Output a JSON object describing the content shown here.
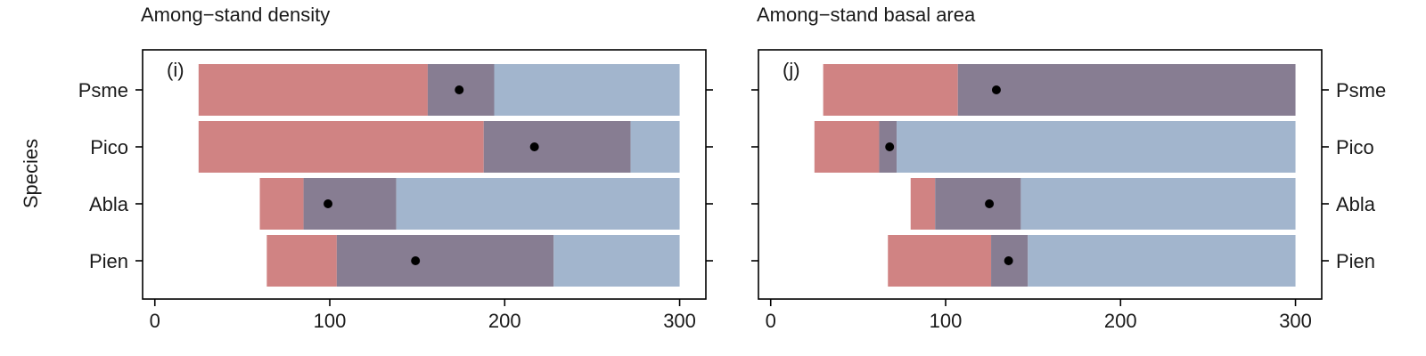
{
  "colors": {
    "red": "#d08383",
    "purple": "#877d92",
    "blue": "#a2b5cd",
    "point": "#000000",
    "axis": "#000000"
  },
  "chart_data": [
    {
      "type": "bar",
      "subtype": "stacked-horizontal-range",
      "title": "Among−stand density",
      "panel_label": "(i)",
      "ylabel": "Species",
      "xlabel": "",
      "xlim": [
        -7,
        315
      ],
      "xticks": [
        0,
        100,
        200,
        300
      ],
      "categories": [
        "Psme",
        "Pico",
        "Abla",
        "Pien"
      ],
      "ytick_side": "left",
      "segments": [
        {
          "red": [
            25,
            156
          ],
          "purple": [
            156,
            194
          ],
          "blue": [
            194,
            300
          ],
          "point": 174
        },
        {
          "red": [
            25,
            188
          ],
          "purple": [
            188,
            272
          ],
          "blue": [
            272,
            300
          ],
          "point": 217
        },
        {
          "red": [
            60,
            85
          ],
          "purple": [
            85,
            138
          ],
          "blue": [
            138,
            300
          ],
          "point": 99
        },
        {
          "red": [
            64,
            104
          ],
          "purple": [
            104,
            228
          ],
          "blue": [
            228,
            300
          ],
          "point": 149
        }
      ]
    },
    {
      "type": "bar",
      "subtype": "stacked-horizontal-range",
      "title": "Among−stand basal area",
      "panel_label": "(j)",
      "ylabel": "",
      "xlabel": "",
      "xlim": [
        -7,
        315
      ],
      "xticks": [
        0,
        100,
        200,
        300
      ],
      "categories": [
        "Psme",
        "Pico",
        "Abla",
        "Pien"
      ],
      "ytick_side": "right",
      "segments": [
        {
          "red": [
            30,
            107
          ],
          "purple": [
            107,
            300
          ],
          "blue": [
            300,
            300
          ],
          "point": 129
        },
        {
          "red": [
            25,
            62
          ],
          "purple": [
            62,
            72
          ],
          "blue": [
            72,
            300
          ],
          "point": 68
        },
        {
          "red": [
            80,
            94
          ],
          "purple": [
            94,
            143
          ],
          "blue": [
            143,
            300
          ],
          "point": 125
        },
        {
          "red": [
            67,
            126
          ],
          "purple": [
            126,
            147
          ],
          "blue": [
            147,
            300
          ],
          "point": 136
        }
      ]
    }
  ]
}
